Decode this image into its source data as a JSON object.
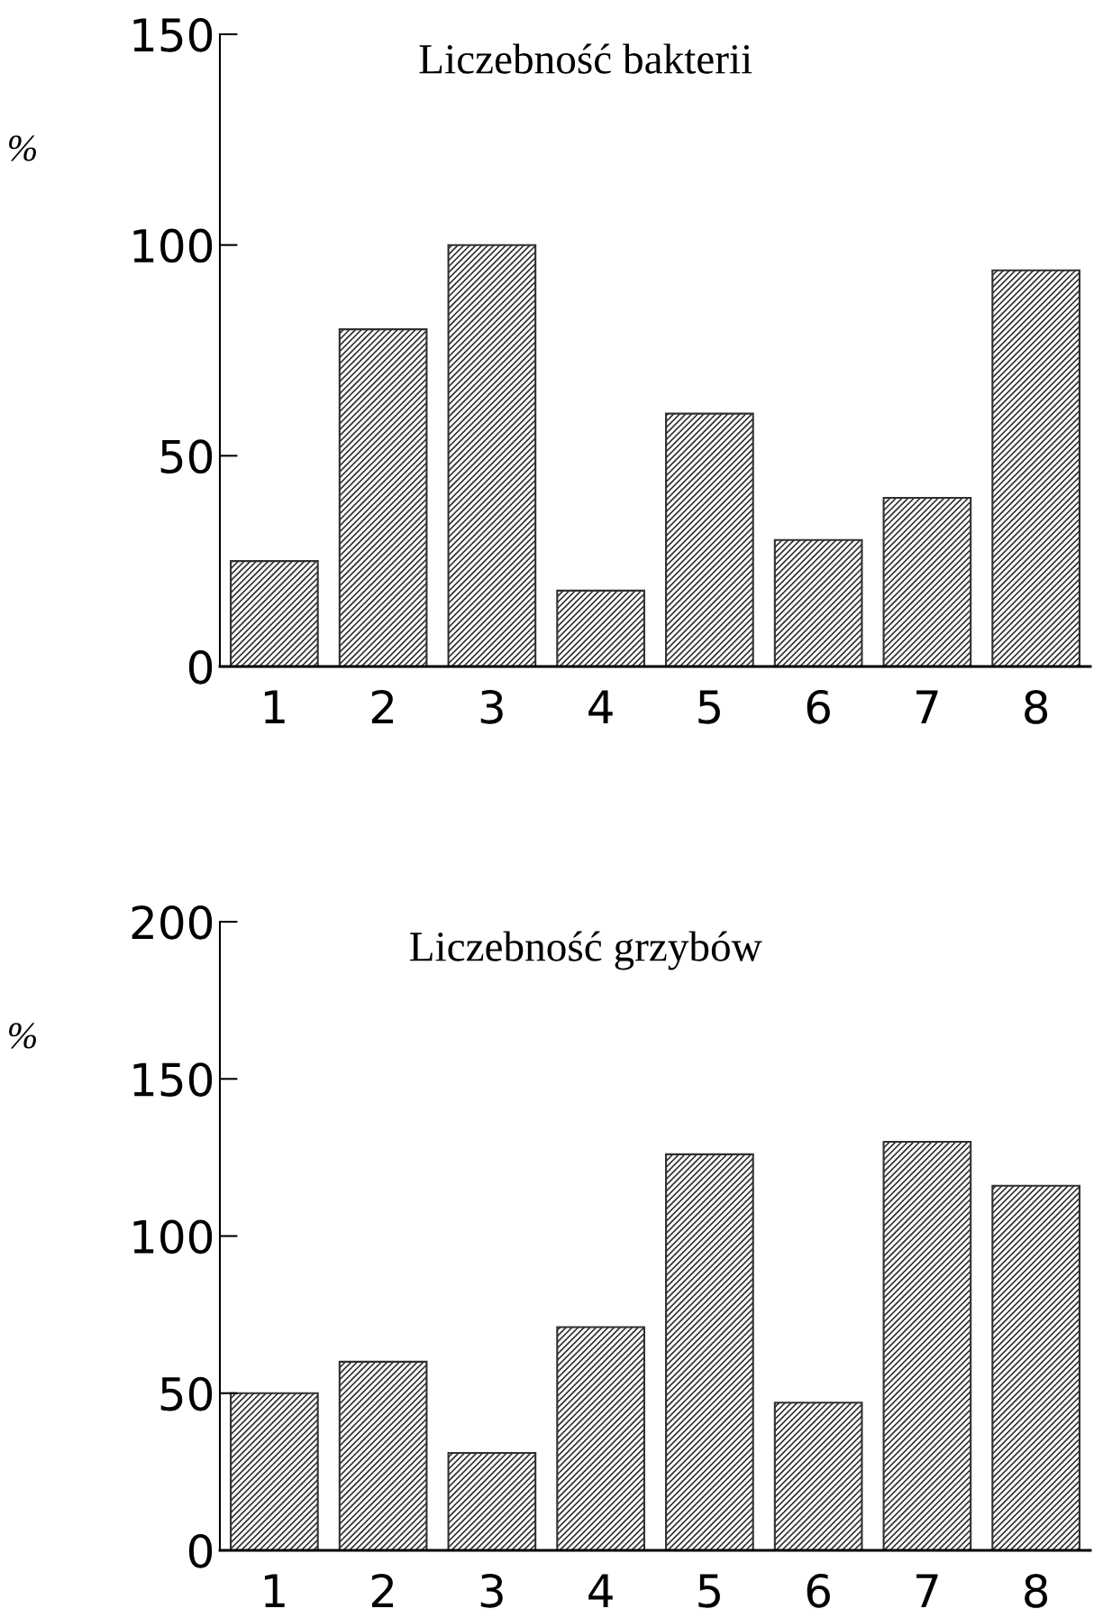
{
  "chart_data": [
    {
      "type": "bar",
      "title": "Liczebność bakterii",
      "ylabel": "%",
      "categories": [
        "1",
        "2",
        "3",
        "4",
        "5",
        "6",
        "7",
        "8"
      ],
      "series": [
        {
          "color": "#303030",
          "values": [
            25,
            80,
            100,
            18,
            60,
            30,
            40,
            94
          ]
        }
      ],
      "ylim": [
        0,
        150
      ],
      "yticks": [
        0,
        50,
        100,
        150
      ],
      "grid": false,
      "legend": false
    },
    {
      "type": "bar",
      "title": "Liczebność grzybów",
      "ylabel": "%",
      "categories": [
        "1",
        "2",
        "3",
        "4",
        "5",
        "6",
        "7",
        "8"
      ],
      "series": [
        {
          "color": "#303030",
          "values": [
            50,
            60,
            31,
            71,
            126,
            47,
            130,
            116
          ]
        }
      ],
      "ylim": [
        0,
        200
      ],
      "yticks": [
        0,
        50,
        100,
        150,
        200
      ],
      "grid": false,
      "legend": false
    }
  ]
}
